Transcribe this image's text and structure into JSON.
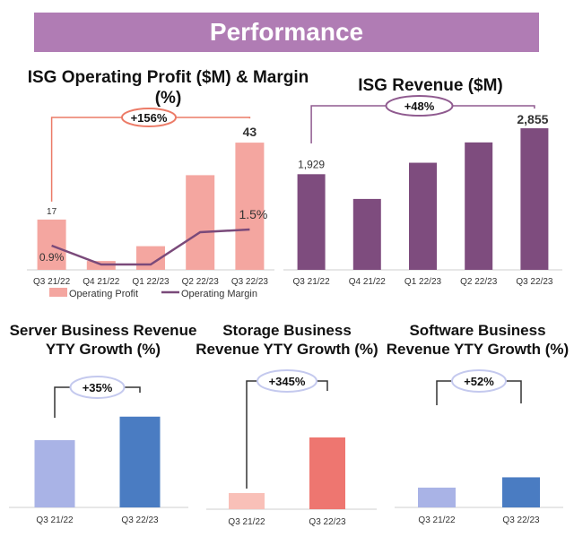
{
  "header": {
    "title": "Performance"
  },
  "colors": {
    "banner": "#b07cb4",
    "profit_bar": "#f4a6a0",
    "margin_line": "#7a4a7a",
    "revenue_bar": "#7e4c7e",
    "light_blue": "#a9b3e6",
    "dark_blue": "#4a7cc2",
    "light_pink": "#f9c0b8",
    "red": "#ee7670",
    "orange_outline": "#ec7b67",
    "purple_outline": "#8f5a8f",
    "blue_outline": "#c4c9ee"
  },
  "chart_data": [
    {
      "type": "bar+line",
      "title": "ISG Operating Profit ($M) & Margin (%)",
      "categories": [
        "Q3 21/22",
        "Q4 21/22",
        "Q1 22/23",
        "Q2 22/23",
        "Q3 22/23"
      ],
      "series": [
        {
          "name": "Operating Profit",
          "type": "bar",
          "values": [
            17,
            3,
            8,
            32,
            43
          ]
        },
        {
          "name": "Operating Margin",
          "type": "line",
          "values": [
            0.9,
            0.2,
            0.2,
            1.4,
            1.5
          ]
        }
      ],
      "data_labels": {
        "first_bar": "17",
        "last_bar": "43",
        "first_line": "0.9%",
        "last_line": "1.5%"
      },
      "annotation": "+156%",
      "legend": [
        "Operating Profit",
        "Operating Margin"
      ],
      "ylim": [
        0,
        50
      ]
    },
    {
      "type": "bar",
      "title": "ISG Revenue ($M)",
      "categories": [
        "Q3 21/22",
        "Q4 21/22",
        "Q1 22/23",
        "Q2 22/23",
        "Q3 22/23"
      ],
      "values": [
        1929,
        1430,
        2160,
        2570,
        2855
      ],
      "data_labels": {
        "first": "1,929",
        "last": "2,855"
      },
      "annotation": "+48%",
      "ylim": [
        0,
        3200
      ]
    },
    {
      "type": "bar",
      "title": "Server Business Revenue YTY Growth (%)",
      "categories": [
        "Q3 21/22",
        "Q3 22/23"
      ],
      "values": [
        100,
        135
      ],
      "annotation": "+35%",
      "ylim": [
        0,
        160
      ]
    },
    {
      "type": "bar",
      "title": "Storage Business Revenue YTY Growth (%)",
      "categories": [
        "Q3 21/22",
        "Q3 22/23"
      ],
      "values": [
        100,
        445
      ],
      "annotation": "+345%",
      "ylim": [
        0,
        700
      ]
    },
    {
      "type": "bar",
      "title": "Software Business Revenue YTY Growth (%)",
      "categories": [
        "Q3 21/22",
        "Q3 22/23"
      ],
      "values": [
        100,
        152
      ],
      "annotation": "+52%",
      "ylim": [
        0,
        240
      ]
    }
  ]
}
